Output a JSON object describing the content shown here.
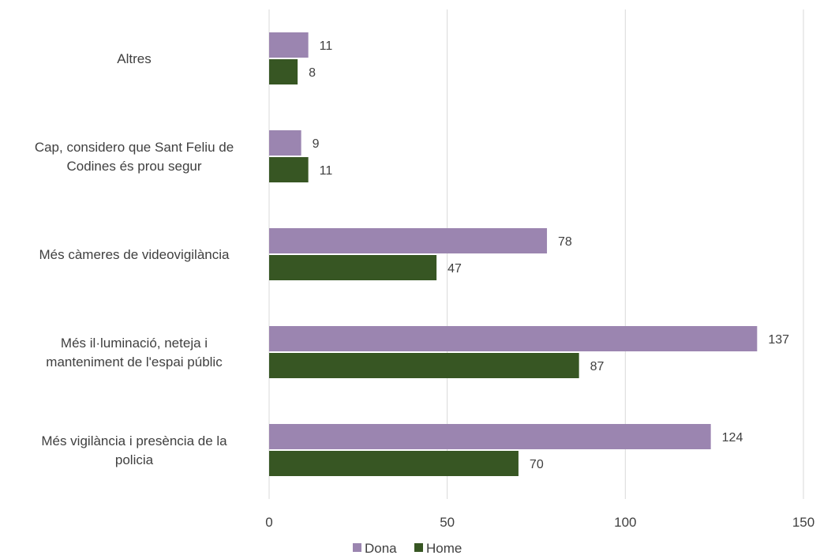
{
  "chart_data": {
    "type": "bar",
    "orientation": "horizontal",
    "categories": [
      "Altres",
      "Cap, considero que Sant Feliu de Codines és prou segur",
      "Més càmeres de videovigilància",
      "Més il·luminació, neteja i manteniment de l'espai públic",
      "Més vigilància i presència de la policia"
    ],
    "category_lines": [
      [
        "Altres"
      ],
      [
        "Cap, considero que Sant Feliu de",
        "Codines és prou segur"
      ],
      [
        "Més càmeres de videovigilància"
      ],
      [
        "Més il·luminació, neteja i",
        "manteniment de l'espai públic"
      ],
      [
        "Més vigilància i presència de la",
        "policia"
      ]
    ],
    "series": [
      {
        "name": "Dona",
        "values": [
          11,
          9,
          78,
          137,
          124
        ],
        "color": "#9b85b0"
      },
      {
        "name": "Home",
        "values": [
          8,
          11,
          47,
          87,
          70
        ],
        "color": "#375623"
      }
    ],
    "xlim": [
      0,
      150
    ],
    "xticks": [
      "0",
      "50",
      "100",
      "150"
    ],
    "xtick_values": [
      0,
      50,
      100,
      150
    ],
    "grid": "vertical",
    "legend": "bottom-center",
    "title": "",
    "xlabel": "",
    "ylabel": ""
  }
}
